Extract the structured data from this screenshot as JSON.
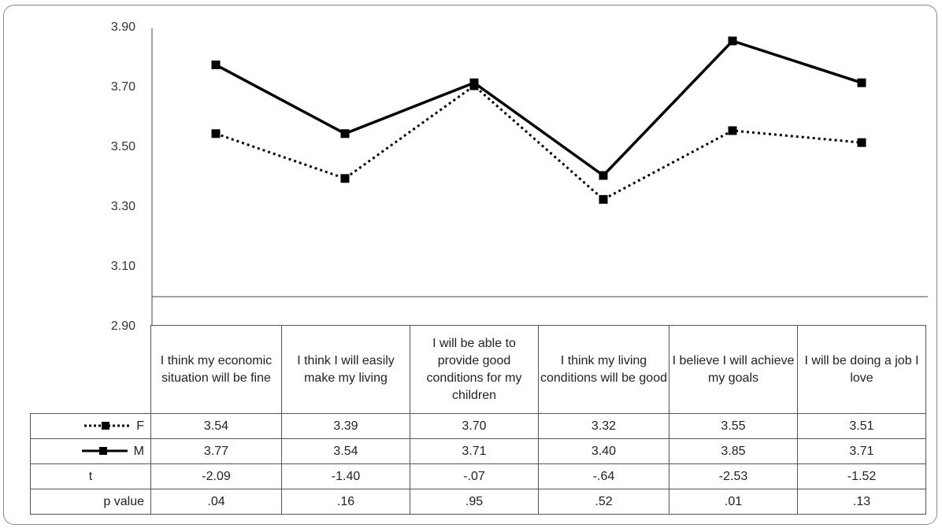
{
  "chart_data": {
    "type": "line",
    "categories": [
      "I think my economic situation will be fine",
      "I think I will easily make my living",
      "I will be able to provide good conditions for my children",
      "I think my living conditions will be good",
      "I believe I will achieve my goals",
      "I will be doing a job I love"
    ],
    "series": [
      {
        "name": "F",
        "values": [
          3.54,
          3.39,
          3.7,
          3.32,
          3.55,
          3.51
        ],
        "style": "dotted",
        "color": "#000000"
      },
      {
        "name": "M",
        "values": [
          3.77,
          3.54,
          3.71,
          3.4,
          3.85,
          3.71
        ],
        "style": "solid",
        "color": "#000000"
      }
    ],
    "yticks": [
      "3.90",
      "3.70",
      "3.50",
      "3.30",
      "3.10",
      "2.90"
    ],
    "ylim": [
      2.9,
      3.9
    ],
    "grid": false,
    "legend": "data-table",
    "table_rows": [
      {
        "label": "F",
        "values": [
          "3.54",
          "3.39",
          "3.70",
          "3.32",
          "3.55",
          "3.51"
        ]
      },
      {
        "label": "M",
        "values": [
          "3.77",
          "3.54",
          "3.71",
          "3.40",
          "3.85",
          "3.71"
        ]
      },
      {
        "label": "t",
        "values": [
          "-2.09",
          "-1.40",
          "-.07",
          "-.64",
          "-2.53",
          "-1.52"
        ]
      },
      {
        "label": "p value",
        "values": [
          ".04",
          ".16",
          ".95",
          ".52",
          ".01",
          ".13"
        ]
      }
    ]
  }
}
